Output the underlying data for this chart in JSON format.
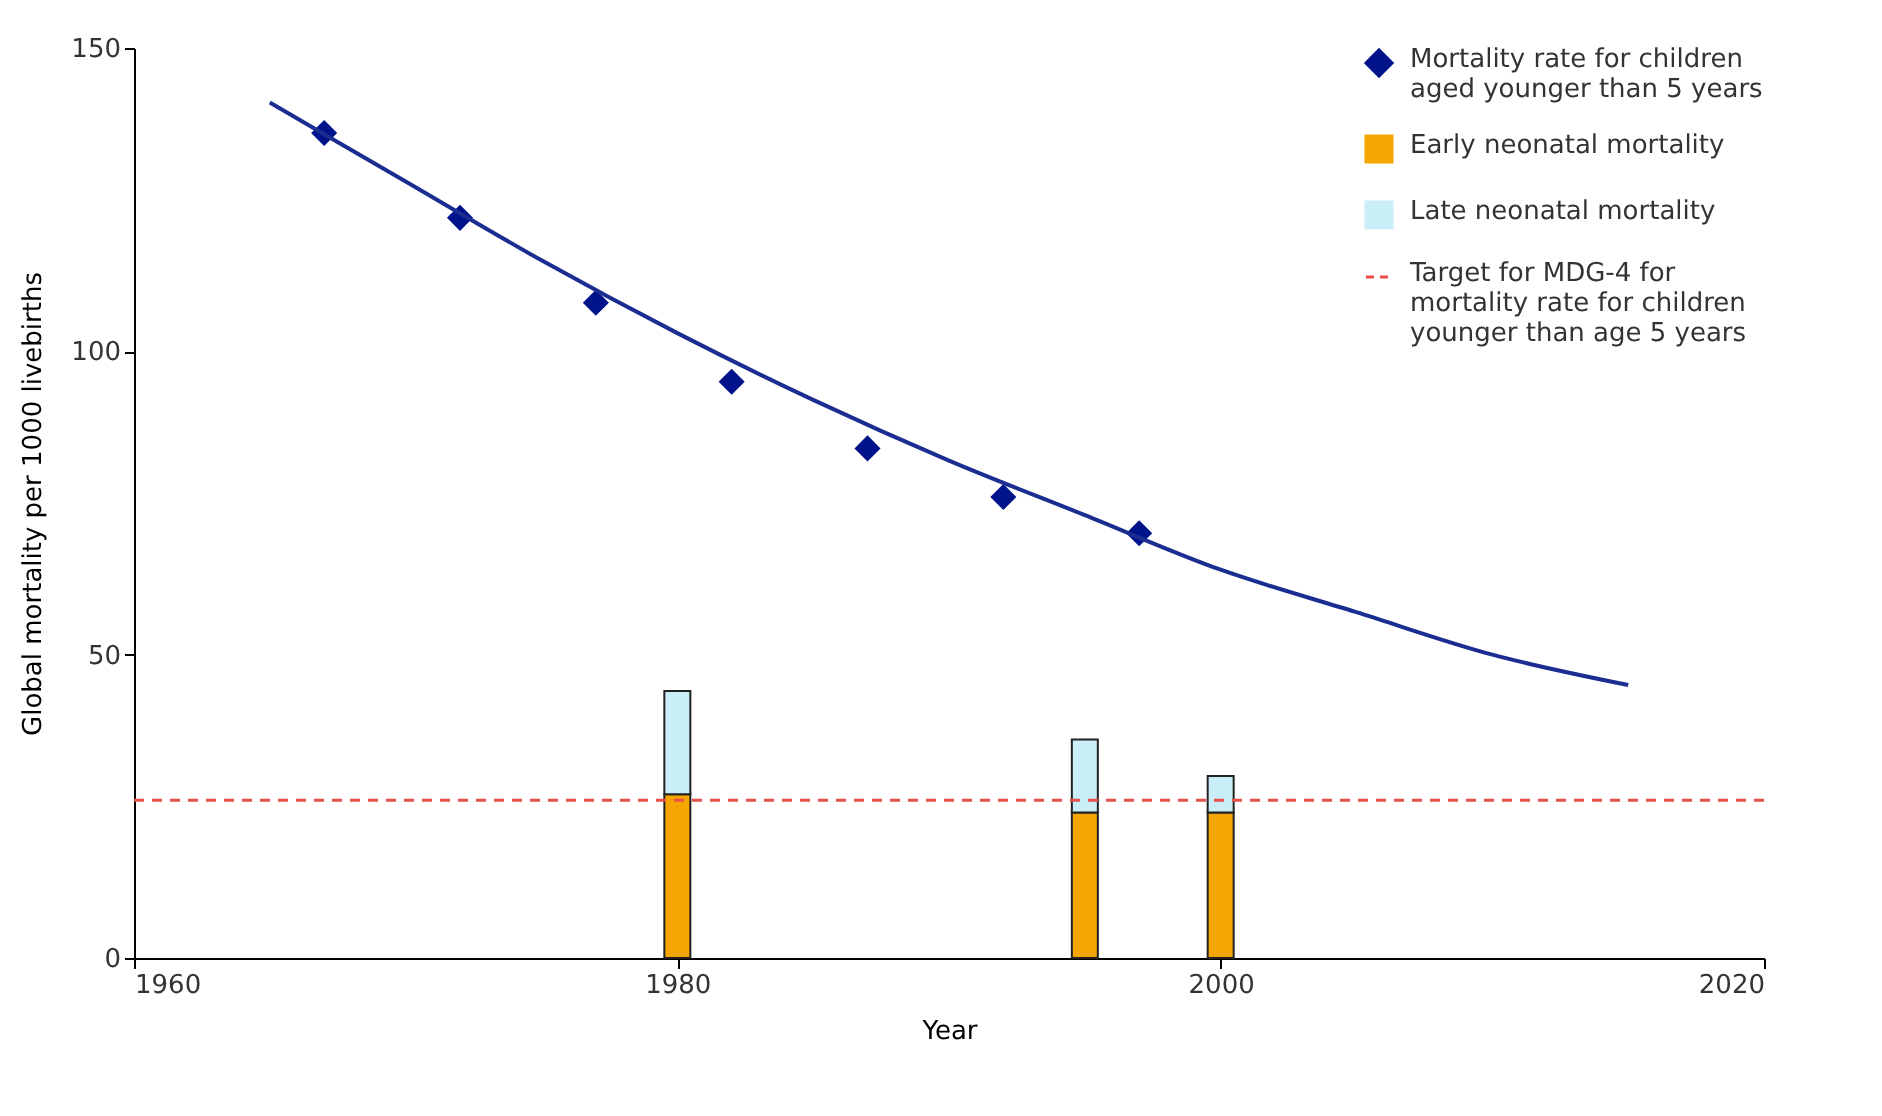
{
  "chart_data": {
    "type": "bar",
    "stacked": true,
    "x": [
      1980,
      1995,
      2000
    ],
    "xlabel": "Year",
    "ylabel": "Global mortality per 1000 livebirths",
    "series": [
      {
        "name": "Mortality rate for children aged younger than 5 years",
        "type": "scatter",
        "marker": "diamond",
        "color": "#00138a",
        "x": [
          1967,
          1972,
          1977,
          1982,
          1987,
          1992,
          1997
        ],
        "values": [
          136,
          122,
          108,
          95,
          84,
          76,
          70
        ]
      },
      {
        "type": "line",
        "color": "#1c2d91",
        "x": [
          1965,
          1970,
          1975,
          1980,
          1985,
          1990,
          1995,
          2000,
          2005,
          2010,
          2015
        ],
        "values": [
          141,
          128,
          115,
          103,
          92,
          82,
          73,
          64,
          57,
          50,
          45
        ]
      },
      {
        "name": "Early neonatal mortality",
        "color": "#f5a500",
        "values": [
          27,
          24,
          24
        ]
      },
      {
        "name": "Late neonatal mortality",
        "color": "#c9eef7",
        "values": [
          17,
          12,
          6
        ]
      }
    ],
    "ref_lines": [
      {
        "axis": "y",
        "value": 26,
        "label": "Target for MDG-4 for mortality rate for children younger than age 5 years",
        "color": "#e8504a",
        "line_style": "dashed"
      }
    ],
    "xlim": [
      1960,
      2020
    ],
    "xticks": [
      1960,
      1980,
      2000,
      2020
    ],
    "ylim": [
      0,
      150
    ],
    "yticks": [
      0,
      50,
      100,
      150
    ],
    "legend": "top right",
    "grid": false
  }
}
